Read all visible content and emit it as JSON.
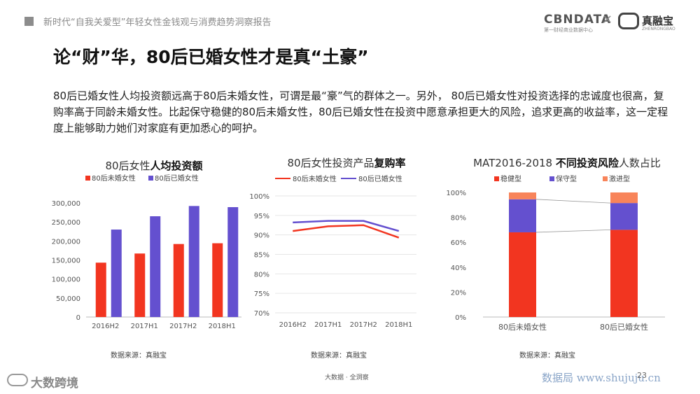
{
  "header": {
    "report_title": "新时代“自我关爱型”年轻女性金钱观与消费趋势洞察报告",
    "logo_cbndata": "CBNDATA",
    "logo_cbndata_sub": "第一财经商业数据中心",
    "logo_separator": "×",
    "logo_partner": "真融宝",
    "logo_partner_sub": "ZHENRONGBAO"
  },
  "headline": "论“财”华，80后已婚女性才是真“土豪”",
  "summary": "80后已婚女性人均投资额远高于80后未婚女性，可谓是最“豪”气的群体之一。另外， 80后已婚女性对投资选择的忠诚度也很高，复购率高于同龄未婚女性。比起保守稳健的80后未婚女性，80后已婚女性在投资中愿意承担更大的风险，追求更高的收益率，这一定程度上能够助力她们对家庭有更加悉心的呵护。",
  "colors": {
    "red": "#f23520",
    "purple": "#6450cf",
    "orange": "#f8845a"
  },
  "chart_data": [
    {
      "type": "bar",
      "title_normal": "80后女性",
      "title_bold": "人均投资额",
      "categories": [
        "2016H2",
        "2017H1",
        "2017H2",
        "2018H1"
      ],
      "series": [
        {
          "name": "80后未婚女性",
          "values": [
            143000,
            167000,
            192000,
            194000
          ]
        },
        {
          "name": "80后已婚女性",
          "values": [
            230000,
            265000,
            292000,
            289000
          ]
        }
      ],
      "yticks": [
        "0",
        "50,000",
        "100,000",
        "150,000",
        "200,000",
        "250,000",
        "300,000"
      ],
      "ylim": [
        0,
        300000
      ],
      "legend": "top",
      "source": "数据来源：真融宝"
    },
    {
      "type": "line",
      "title_normal": "80后女性投资产品",
      "title_bold": "复购率",
      "categories": [
        "2016H2",
        "2017H1",
        "2017H2",
        "2018H1"
      ],
      "series": [
        {
          "name": "80后未婚女性",
          "values": [
            91,
            92.2,
            92.5,
            89.3
          ]
        },
        {
          "name": "80后已婚女性",
          "values": [
            93.2,
            93.6,
            93.6,
            91
          ]
        }
      ],
      "yticks": [
        "70%",
        "75%",
        "80%",
        "85%",
        "90%",
        "95%",
        "100%"
      ],
      "ylim": [
        70,
        100
      ],
      "legend": "top",
      "source": "数据来源：真融宝"
    },
    {
      "type": "bar",
      "stacked": true,
      "title_normal": "MAT2016-2018 ",
      "title_bold": "不同投资风险",
      "title_tail": "人数占比",
      "categories": [
        "80后未婚女性",
        "80后已婚女性"
      ],
      "series": [
        {
          "name": "稳健型",
          "values": [
            68,
            70
          ]
        },
        {
          "name": "保守型",
          "values": [
            26.5,
            21.5
          ]
        },
        {
          "name": "激进型",
          "values": [
            5.5,
            8.5
          ]
        }
      ],
      "yticks": [
        "0%",
        "20%",
        "40%",
        "60%",
        "80%",
        "100%"
      ],
      "ylim": [
        0,
        100
      ],
      "legend": "top",
      "source": "数据来源：真融宝"
    }
  ],
  "footer": {
    "center": "大数据 · 全洞察",
    "page_number": "23",
    "left_logo": "大数跨境",
    "right_watermark": "数据局 www.shujuju.cn"
  }
}
